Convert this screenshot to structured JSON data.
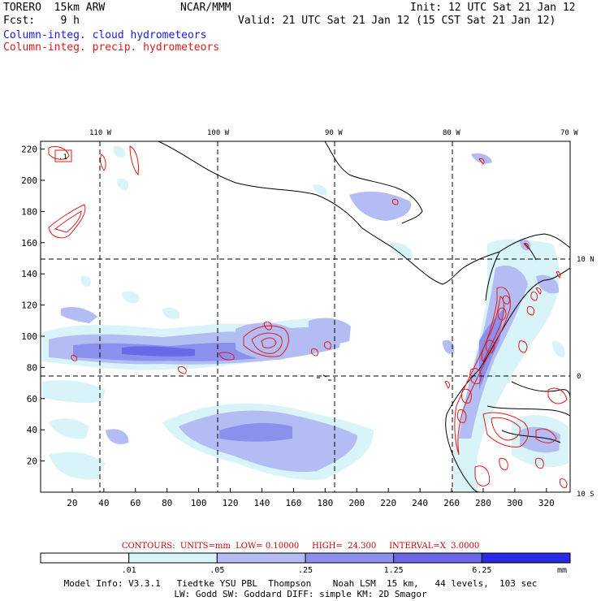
{
  "header": {
    "model": "TORERO  15km ARW",
    "center": "NCAR/MMM",
    "init": "Init: 12 UTC Sat 21 Jan 12",
    "fcst": "Fcst:    9 h",
    "valid": "Valid: 21 UTC Sat 21 Jan 12 (15 CST Sat 21 Jan 12)",
    "field1": "Column-integ. cloud hydrometeors",
    "field2": "Column-integ. precip. hydrometeors"
  },
  "map": {
    "lon_labels": [
      "110 W",
      "100 W",
      "90 W",
      "80 W",
      "70 W"
    ],
    "lat_labels": [
      "10 N",
      "0",
      "10 S"
    ],
    "x_ticks": [
      "20",
      "40",
      "60",
      "80",
      "100",
      "120",
      "140",
      "160",
      "180",
      "200",
      "220",
      "240",
      "260",
      "280",
      "300",
      "320"
    ],
    "y_ticks": [
      "20",
      "40",
      "60",
      "80",
      "100",
      "120",
      "140",
      "160",
      "180",
      "200",
      "220"
    ],
    "box_label": ".1",
    "grid_x_range": [
      0,
      335
    ],
    "grid_y_range": [
      0,
      225
    ]
  },
  "contours": {
    "text": "CONTOURS:  UNITS=mm  LOW= 0.10000     HIGH=  24.300     INTERVAL=X  3.0000",
    "units": "mm",
    "low": 0.1,
    "high": 24.3,
    "interval": 3.0,
    "color": "#e01a1a"
  },
  "legend": {
    "labels": [
      ".01",
      ".05",
      ".25",
      "1.25",
      "6.25"
    ],
    "unit": "mm",
    "colors": [
      "#ffffff",
      "#d8f4f8",
      "#b4bcf4",
      "#8a90ec",
      "#6868e8",
      "#2a2ae6"
    ]
  },
  "model_info": {
    "line1": "Model Info: V3.3.1   Tiedtke YSU PBL  Thompson    Noah LSM  15 km,   44 levels,  103 sec",
    "line2": "LW: Godd SW: Goddard DIFF: simple KM: 2D Smagor"
  }
}
